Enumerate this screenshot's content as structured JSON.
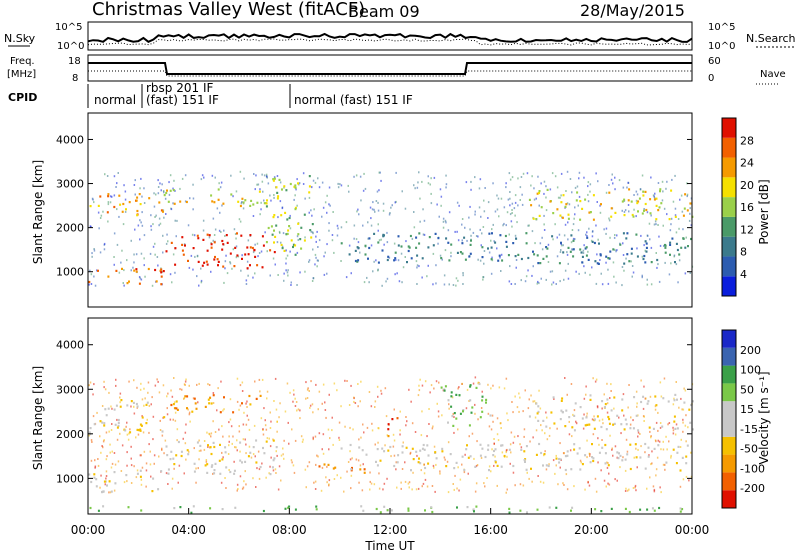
{
  "header": {
    "site": "Christmas Valley West (fitACF)",
    "beam": "Beam 09",
    "date": "28/May/2015"
  },
  "noise_panel": {
    "left_label": "N.Sky",
    "right_label": "N.Search",
    "ticks": [
      "10^5",
      "10^0"
    ]
  },
  "freq_panel": {
    "left_label_1": "Freq.",
    "left_label_2": "[MHz]",
    "right_label": "Nave",
    "left_ticks": [
      "18",
      "8"
    ],
    "right_ticks": [
      "60",
      "0"
    ]
  },
  "cpid": {
    "label": "CPID",
    "segments": [
      {
        "text": "normal",
        "text2": ""
      },
      {
        "text": "rbsp 201 IF",
        "text2": "(fast) 151 IF"
      },
      {
        "text": "normal (fast) 151 IF",
        "text2": ""
      }
    ]
  },
  "colors": {
    "power": [
      "#0a1edc",
      "#2c5cb0",
      "#3b7a8c",
      "#4a9a68",
      "#9ad04a",
      "#f5e000",
      "#f59a00",
      "#f26000",
      "#e01000"
    ],
    "velocity": [
      "#e01000",
      "#f26000",
      "#f59a00",
      "#f5c000",
      "#c8c8c8",
      "#c8c8c8",
      "#7ac848",
      "#3aa048",
      "#3a64b0",
      "#1a28c8"
    ]
  },
  "chart_data": [
    {
      "type": "heatmap",
      "title": "",
      "xlabel": "",
      "ylabel": "Slant Range [km]",
      "colorbar_label": "Power [dB]",
      "colorbar_ticks": [
        "28",
        "24",
        "20",
        "16",
        "12",
        "8",
        "4"
      ],
      "yticks": [
        "4000",
        "3000",
        "2000",
        "1000"
      ],
      "ylim": [
        200,
        4600
      ],
      "xlim": [
        0,
        24
      ],
      "x_units": "hours UT",
      "features": [
        {
          "t0": 0.0,
          "t1": 3.0,
          "r0": 700,
          "r1": 1100,
          "level": 7
        },
        {
          "t0": 0.0,
          "t1": 3.0,
          "r0": 2300,
          "r1": 2800,
          "level": 6
        },
        {
          "t0": 3.0,
          "t1": 7.5,
          "r0": 1100,
          "r1": 1900,
          "level": 8
        },
        {
          "t0": 3.0,
          "t1": 7.0,
          "r0": 2500,
          "r1": 2900,
          "level": 5
        },
        {
          "t0": 7.0,
          "t1": 9.0,
          "r0": 1400,
          "r1": 3200,
          "level": 4
        },
        {
          "t0": 10.0,
          "t1": 24.0,
          "r0": 1200,
          "r1": 1900,
          "level": 2
        },
        {
          "t0": 17.5,
          "t1": 24.0,
          "r0": 2200,
          "r1": 2900,
          "level": 5
        }
      ]
    },
    {
      "type": "heatmap",
      "title": "",
      "xlabel": "Time UT",
      "ylabel": "Slant Range [km]",
      "colorbar_label": "Velocity [m s⁻¹]",
      "colorbar_ticks": [
        "200",
        "100",
        "50",
        "15",
        "-15",
        "-50",
        "-100",
        "-200"
      ],
      "yticks": [
        "4000",
        "3000",
        "2000",
        "1000"
      ],
      "xticks": [
        "00:00",
        "04:00",
        "08:00",
        "12:00",
        "16:00",
        "20:00",
        "00:00"
      ],
      "ylim": [
        200,
        4600
      ],
      "xlim": [
        0,
        24
      ],
      "x_units": "hours UT",
      "features": [
        {
          "t0": 0.0,
          "t1": 3.0,
          "r0": 700,
          "r1": 1200,
          "level": 4
        },
        {
          "t0": 0.0,
          "t1": 3.0,
          "r0": 2000,
          "r1": 2800,
          "level": 4
        },
        {
          "t0": 3.0,
          "t1": 7.5,
          "r0": 1100,
          "r1": 1900,
          "level": 4
        },
        {
          "t0": 3.0,
          "t1": 7.0,
          "r0": 2500,
          "r1": 2900,
          "level": 2
        },
        {
          "t0": 9.0,
          "t1": 11.0,
          "r0": 1100,
          "r1": 1400,
          "level": 2
        },
        {
          "t0": 11.8,
          "t1": 12.4,
          "r0": 1900,
          "r1": 2400,
          "level": 1
        },
        {
          "t0": 14.0,
          "t1": 16.0,
          "r0": 2200,
          "r1": 3200,
          "level": 6
        },
        {
          "t0": 10.0,
          "t1": 24.0,
          "r0": 1200,
          "r1": 1800,
          "level": 4
        },
        {
          "t0": 17.5,
          "t1": 24.0,
          "r0": 2100,
          "r1": 2900,
          "level": 4
        },
        {
          "t0": 0.0,
          "t1": 24.0,
          "r0": 250,
          "r1": 400,
          "level": 6
        }
      ]
    }
  ]
}
